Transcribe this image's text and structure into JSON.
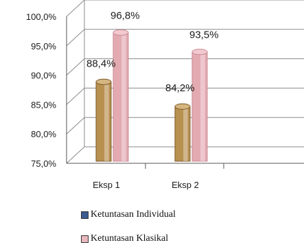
{
  "chart_data": {
    "type": "bar",
    "categories": [
      "Eksp 1",
      "Eksp 2"
    ],
    "series": [
      {
        "name": "Ketuntasan Individual",
        "values": [
          88.4,
          84.2
        ],
        "labels": [
          "88,4%",
          "84,2%"
        ],
        "color": "#c9a86a"
      },
      {
        "name": "Ketuntasan Klasikal",
        "values": [
          96.8,
          93.5
        ],
        "labels": [
          "96,8%",
          "93,5%"
        ],
        "color": "#e8b8be"
      }
    ],
    "yticks": [
      "75,0%",
      "80,0%",
      "85,0%",
      "90,0%",
      "95,0%",
      "100,0%"
    ],
    "ylim": [
      75,
      100
    ],
    "grid": true,
    "legend_position": "bottom"
  }
}
